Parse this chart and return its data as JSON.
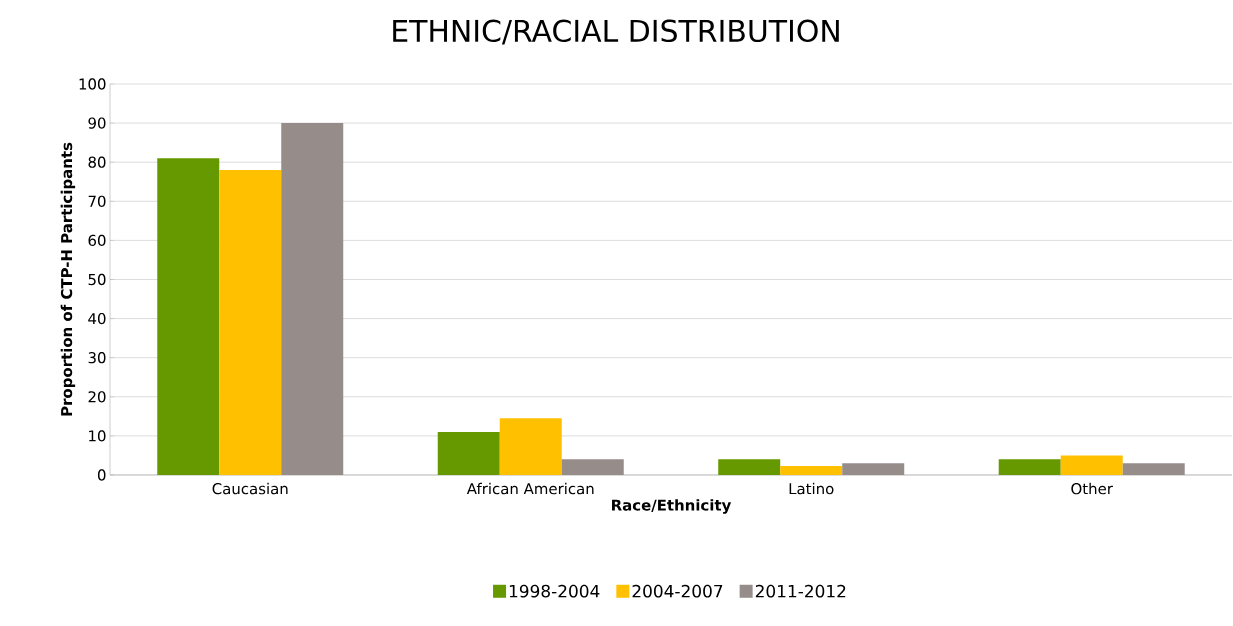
{
  "chart_data": {
    "type": "bar",
    "title": "ETHNIC/RACIAL DISTRIBUTION",
    "xlabel": "Race/Ethnicity",
    "ylabel": "Proportion of CTP-H Participants",
    "categories": [
      "Caucasian",
      "African American",
      "Latino",
      "Other"
    ],
    "series": [
      {
        "name": "1998-2004",
        "color": "#669900",
        "values": [
          81,
          11,
          4,
          4
        ]
      },
      {
        "name": "2004-2007",
        "color": "#ffc000",
        "values": [
          78,
          14.5,
          2.3,
          5
        ]
      },
      {
        "name": "2011-2012",
        "color": "#968c8a",
        "values": [
          90,
          4,
          3,
          3
        ]
      }
    ],
    "ylim": [
      0,
      100
    ],
    "yticks": [
      0,
      10,
      20,
      30,
      40,
      50,
      60,
      70,
      80,
      90,
      100
    ],
    "grid": "y",
    "legend": "bottom"
  }
}
